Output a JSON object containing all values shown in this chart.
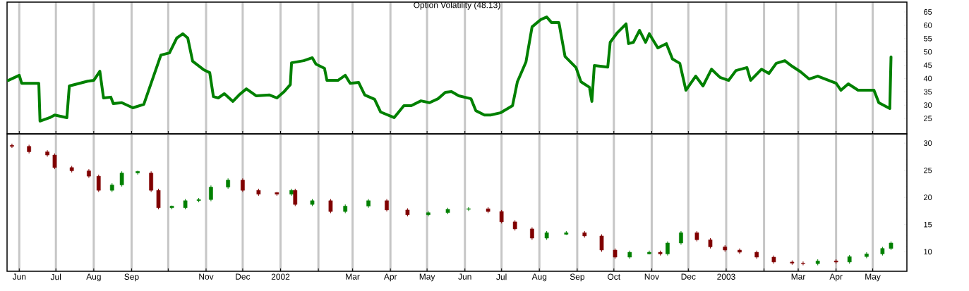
{
  "chart_data": [
    {
      "type": "line",
      "title": "Option Volatility (48.13)",
      "color": "#008000",
      "grid": "x",
      "tick_labels": "y",
      "xlim": [
        "2001-05-22",
        "2003-05-29"
      ],
      "ylim": [
        19.2,
        68.7
      ],
      "yticks": [
        25,
        30,
        35,
        40,
        45,
        50,
        55,
        60,
        65
      ],
      "xticks": [
        {
          "value": "2001-06-01",
          "label": null
        },
        {
          "value": "2001-07-01",
          "label": null
        },
        {
          "value": "2001-08-01",
          "label": null
        },
        {
          "value": "2001-09-01",
          "label": null
        },
        {
          "value": "2001-10-01",
          "label": null
        },
        {
          "value": "2001-11-01",
          "label": null
        },
        {
          "value": "2001-12-01",
          "label": null
        },
        {
          "value": "2002-01-01",
          "label": null
        },
        {
          "value": "2002-02-01",
          "label": null
        },
        {
          "value": "2002-03-01",
          "label": null
        },
        {
          "value": "2002-04-01",
          "label": null
        },
        {
          "value": "2002-05-01",
          "label": null
        },
        {
          "value": "2002-06-01",
          "label": null
        },
        {
          "value": "2002-07-01",
          "label": null
        },
        {
          "value": "2002-08-01",
          "label": null
        },
        {
          "value": "2002-09-01",
          "label": null
        },
        {
          "value": "2002-10-01",
          "label": null
        },
        {
          "value": "2002-11-01",
          "label": null
        },
        {
          "value": "2002-12-01",
          "label": null
        },
        {
          "value": "2003-01-01",
          "label": null
        },
        {
          "value": "2003-02-01",
          "label": null
        },
        {
          "value": "2003-03-01",
          "label": null
        },
        {
          "value": "2003-04-01",
          "label": null
        },
        {
          "value": "2003-05-01",
          "label": null
        }
      ],
      "x": [
        "2001-05-23",
        "2001-06-01",
        "2001-06-03",
        "2001-06-17",
        "2001-06-18",
        "2001-06-26",
        "2001-06-30",
        "2001-07-10",
        "2001-07-12",
        "2001-07-27",
        "2001-08-01",
        "2001-08-06",
        "2001-08-09",
        "2001-08-15",
        "2001-08-17",
        "2001-08-24",
        "2001-09-02",
        "2001-09-11",
        "2001-09-25",
        "2001-10-02",
        "2001-10-08",
        "2001-10-13",
        "2001-10-17",
        "2001-10-21",
        "2001-10-30",
        "2001-11-04",
        "2001-11-07",
        "2001-11-11",
        "2001-11-16",
        "2001-11-23",
        "2001-11-28",
        "2001-12-04",
        "2001-12-12",
        "2001-12-23",
        "2001-12-29",
        "2002-01-04",
        "2002-01-09",
        "2002-01-10",
        "2002-01-20",
        "2002-01-27",
        "2002-01-30",
        "2002-02-06",
        "2002-02-08",
        "2002-02-17",
        "2002-02-23",
        "2002-02-27",
        "2002-03-06",
        "2002-03-11",
        "2002-03-19",
        "2002-03-24",
        "2002-04-04",
        "2002-04-12",
        "2002-04-18",
        "2002-04-26",
        "2002-05-03",
        "2002-05-10",
        "2002-05-16",
        "2002-05-21",
        "2002-05-27",
        "2002-06-06",
        "2002-06-10",
        "2002-06-17",
        "2002-06-22",
        "2002-06-30",
        "2002-07-10",
        "2002-07-14",
        "2002-07-21",
        "2002-07-26",
        "2002-08-02",
        "2002-08-07",
        "2002-08-11",
        "2002-08-17",
        "2002-08-22",
        "2002-08-31",
        "2002-09-04",
        "2002-09-11",
        "2002-09-13",
        "2002-09-15",
        "2002-09-26",
        "2002-09-28",
        "2002-10-04",
        "2002-10-11",
        "2002-10-13",
        "2002-10-17",
        "2002-10-22",
        "2002-10-27",
        "2002-10-30",
        "2002-11-06",
        "2002-11-13",
        "2002-11-18",
        "2002-11-24",
        "2002-11-29",
        "2002-12-07",
        "2002-12-13",
        "2002-12-20",
        "2002-12-27",
        "2003-01-03",
        "2003-01-09",
        "2003-01-18",
        "2003-01-21",
        "2003-01-30",
        "2003-02-05",
        "2003-02-11",
        "2003-02-18",
        "2003-02-24",
        "2003-03-03",
        "2003-03-10",
        "2003-03-17",
        "2003-04-01",
        "2003-04-05",
        "2003-04-11",
        "2003-04-19",
        "2003-05-02",
        "2003-05-06",
        "2003-05-15",
        "2003-05-16"
      ],
      "values": [
        39.3,
        41.2,
        38.2,
        38.2,
        24.0,
        25.3,
        26.3,
        25.3,
        37.2,
        39.0,
        39.3,
        42.7,
        32.7,
        33.0,
        30.6,
        30.9,
        29.0,
        30.3,
        48.8,
        49.6,
        55.2,
        56.8,
        55.2,
        46.5,
        43.3,
        42.2,
        33.2,
        32.7,
        34.3,
        31.4,
        33.8,
        36.1,
        33.5,
        33.8,
        32.7,
        35.1,
        37.7,
        45.9,
        46.7,
        47.8,
        45.4,
        43.8,
        39.3,
        39.3,
        41.2,
        38.2,
        38.5,
        33.8,
        32.2,
        27.4,
        25.3,
        29.8,
        29.8,
        31.6,
        30.9,
        32.4,
        34.8,
        35.1,
        33.5,
        32.4,
        27.9,
        26.3,
        26.3,
        27.1,
        29.8,
        38.8,
        46.2,
        59.4,
        62.1,
        63.1,
        61.0,
        61.0,
        48.3,
        44.1,
        38.8,
        36.7,
        31.4,
        44.9,
        44.3,
        53.6,
        57.3,
        60.5,
        53.1,
        53.6,
        58.1,
        53.6,
        56.8,
        51.5,
        53.1,
        47.3,
        45.7,
        35.6,
        40.9,
        37.2,
        43.5,
        40.4,
        39.3,
        43.0,
        44.1,
        39.3,
        43.5,
        41.9,
        45.7,
        46.7,
        44.6,
        42.5,
        39.8,
        40.9,
        38.2,
        35.6,
        38.0,
        35.6,
        35.6,
        30.9,
        28.7,
        48.1
      ]
    },
    {
      "type": "candlestick",
      "grid": "x",
      "xlim": [
        "2001-05-22",
        "2003-05-29"
      ],
      "ylim": [
        6.4,
        31.7
      ],
      "yticks": [
        10,
        15,
        20,
        25,
        30
      ],
      "xticks": [
        {
          "value": "2001-06-01",
          "label": "Jun"
        },
        {
          "value": "2001-07-01",
          "label": "Jul"
        },
        {
          "value": "2001-08-01",
          "label": "Aug"
        },
        {
          "value": "2001-09-01",
          "label": "Sep"
        },
        {
          "value": "2001-10-01",
          "label": null
        },
        {
          "value": "2001-11-01",
          "label": "Nov"
        },
        {
          "value": "2001-12-01",
          "label": "Dec"
        },
        {
          "value": "2002-01-01",
          "label": "2002"
        },
        {
          "value": "2002-02-01",
          "label": null
        },
        {
          "value": "2002-03-01",
          "label": "Mar"
        },
        {
          "value": "2002-04-01",
          "label": "Apr"
        },
        {
          "value": "2002-05-01",
          "label": "May"
        },
        {
          "value": "2002-06-01",
          "label": "Jun"
        },
        {
          "value": "2002-07-01",
          "label": "Jul"
        },
        {
          "value": "2002-08-01",
          "label": "Aug"
        },
        {
          "value": "2002-09-01",
          "label": "Sep"
        },
        {
          "value": "2002-10-01",
          "label": "Oct"
        },
        {
          "value": "2002-11-01",
          "label": "Nov"
        },
        {
          "value": "2002-12-01",
          "label": "Dec"
        },
        {
          "value": "2003-01-01",
          "label": "2003"
        },
        {
          "value": "2003-02-01",
          "label": null
        },
        {
          "value": "2003-03-01",
          "label": "Mar"
        },
        {
          "value": "2003-04-01",
          "label": "Apr"
        },
        {
          "value": "2003-05-01",
          "label": "May"
        }
      ],
      "x": [
        "2001-05-26",
        "2001-06-09",
        "2001-06-24",
        "2001-06-30",
        "2001-07-14",
        "2001-07-28",
        "2001-08-05",
        "2001-08-16",
        "2001-08-24",
        "2001-09-06",
        "2001-09-17",
        "2001-09-23",
        "2001-10-04",
        "2001-10-15",
        "2001-10-26",
        "2001-11-05",
        "2001-11-19",
        "2001-12-01",
        "2001-12-14",
        "2001-12-29",
        "2002-01-10",
        "2002-01-13",
        "2002-01-27",
        "2002-02-11",
        "2002-02-23",
        "2002-03-14",
        "2002-03-29",
        "2002-04-15",
        "2002-05-02",
        "2002-05-18",
        "2002-06-04",
        "2002-06-20",
        "2002-07-01",
        "2002-07-12",
        "2002-07-26",
        "2002-08-07",
        "2002-08-23",
        "2002-09-07",
        "2002-09-21",
        "2002-10-02",
        "2002-10-14",
        "2002-10-30",
        "2002-11-08",
        "2002-11-14",
        "2002-11-25",
        "2002-12-08",
        "2002-12-19",
        "2002-12-31",
        "2003-01-12",
        "2003-01-26",
        "2003-02-09",
        "2003-02-24",
        "2003-03-05",
        "2003-03-17",
        "2003-04-01",
        "2003-04-12",
        "2003-04-26",
        "2003-05-09",
        "2003-05-16"
      ],
      "ohlc": [
        [
          29.6,
          29.9,
          29.1,
          29.4
        ],
        [
          29.4,
          29.7,
          28.1,
          28.4
        ],
        [
          28.4,
          28.7,
          27.5,
          27.8
        ],
        [
          27.8,
          28.1,
          25.2,
          25.5
        ],
        [
          25.5,
          25.8,
          24.6,
          24.9
        ],
        [
          24.9,
          25.2,
          23.6,
          23.9
        ],
        [
          23.9,
          24.2,
          21.0,
          21.3
        ],
        [
          21.3,
          22.6,
          21.0,
          22.3
        ],
        [
          22.3,
          24.8,
          22.0,
          24.5
        ],
        [
          24.5,
          24.9,
          24.2,
          24.8
        ],
        [
          24.5,
          24.8,
          21.0,
          21.3
        ],
        [
          21.3,
          21.6,
          17.8,
          18.1
        ],
        [
          18.1,
          18.5,
          17.8,
          18.4
        ],
        [
          18.1,
          19.7,
          17.8,
          19.4
        ],
        [
          19.4,
          19.9,
          19.1,
          19.6
        ],
        [
          19.6,
          22.2,
          19.3,
          21.9
        ],
        [
          21.9,
          23.5,
          21.6,
          23.2
        ],
        [
          23.2,
          23.5,
          21.0,
          21.3
        ],
        [
          21.3,
          21.6,
          20.3,
          20.6
        ],
        [
          20.9,
          21.0,
          20.3,
          20.6
        ],
        [
          20.6,
          21.6,
          20.3,
          21.3
        ],
        [
          21.3,
          21.6,
          18.4,
          18.7
        ],
        [
          18.7,
          19.7,
          18.4,
          19.4
        ],
        [
          19.4,
          19.7,
          17.1,
          17.4
        ],
        [
          17.4,
          18.7,
          17.1,
          18.4
        ],
        [
          18.4,
          19.7,
          18.1,
          19.4
        ],
        [
          19.4,
          19.7,
          17.4,
          17.7
        ],
        [
          17.7,
          18.0,
          16.5,
          16.8
        ],
        [
          16.8,
          17.5,
          16.5,
          17.2
        ],
        [
          17.2,
          18.1,
          16.9,
          17.8
        ],
        [
          17.8,
          18.2,
          17.5,
          17.9
        ],
        [
          17.9,
          18.2,
          17.1,
          17.4
        ],
        [
          17.4,
          17.7,
          15.2,
          15.5
        ],
        [
          15.5,
          15.8,
          13.9,
          14.2
        ],
        [
          14.2,
          14.5,
          12.2,
          12.5
        ],
        [
          12.5,
          13.8,
          12.2,
          13.5
        ],
        [
          13.2,
          13.8,
          13.1,
          13.5
        ],
        [
          13.5,
          13.8,
          12.6,
          12.9
        ],
        [
          12.9,
          13.2,
          10.0,
          10.3
        ],
        [
          10.3,
          10.6,
          8.7,
          9.0
        ],
        [
          9.0,
          10.2,
          8.7,
          9.9
        ],
        [
          9.6,
          10.2,
          9.5,
          9.9
        ],
        [
          9.9,
          10.2,
          9.3,
          9.6
        ],
        [
          9.6,
          11.9,
          9.3,
          11.6
        ],
        [
          11.6,
          13.8,
          11.3,
          13.5
        ],
        [
          13.5,
          13.8,
          11.9,
          12.2
        ],
        [
          12.2,
          12.5,
          10.6,
          10.9
        ],
        [
          10.9,
          11.2,
          10.0,
          10.3
        ],
        [
          10.3,
          10.6,
          9.6,
          9.9
        ],
        [
          9.9,
          10.2,
          8.7,
          9.0
        ],
        [
          9.0,
          9.3,
          7.8,
          8.1
        ],
        [
          8.1,
          8.4,
          7.6,
          7.9
        ],
        [
          7.9,
          8.2,
          7.5,
          7.8
        ],
        [
          7.8,
          8.6,
          7.5,
          8.3
        ],
        [
          8.3,
          8.6,
          7.8,
          8.1
        ],
        [
          8.1,
          9.4,
          7.8,
          9.1
        ],
        [
          9.1,
          9.9,
          8.8,
          9.6
        ],
        [
          9.6,
          10.9,
          9.3,
          10.6
        ],
        [
          10.6,
          11.9,
          10.3,
          11.6
        ]
      ]
    }
  ]
}
